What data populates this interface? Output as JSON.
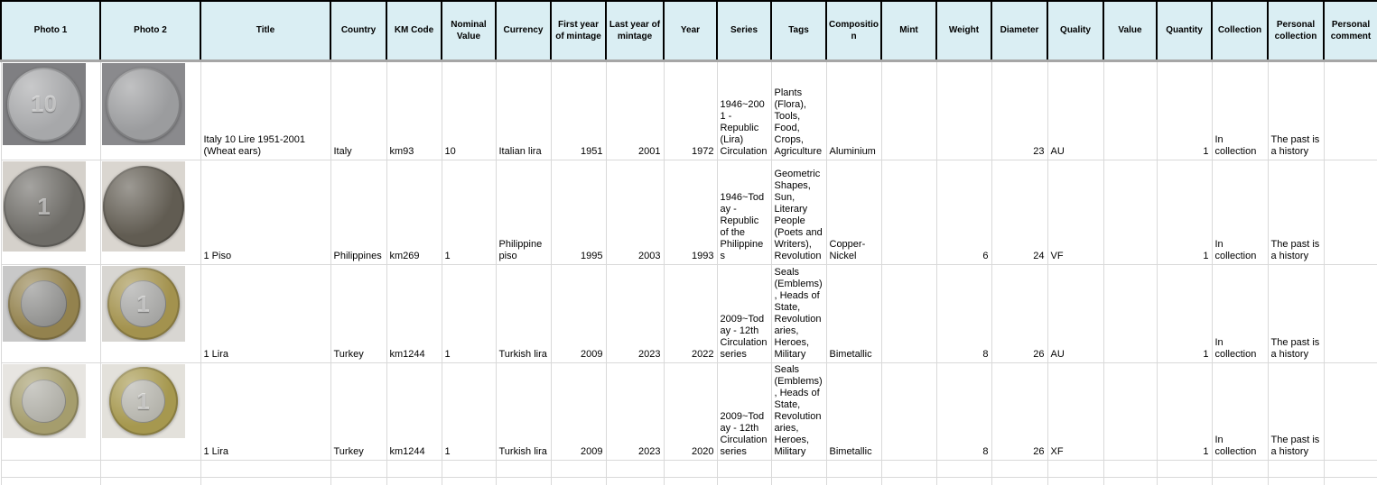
{
  "table": {
    "columns": [
      {
        "id": "photo1",
        "label": "Photo 1"
      },
      {
        "id": "photo2",
        "label": "Photo 2"
      },
      {
        "id": "title",
        "label": "Title"
      },
      {
        "id": "country",
        "label": "Country"
      },
      {
        "id": "km_code",
        "label": "KM Code"
      },
      {
        "id": "nominal_value",
        "label": "Nominal Value"
      },
      {
        "id": "currency",
        "label": "Currency"
      },
      {
        "id": "first_year",
        "label": "First year of mintage"
      },
      {
        "id": "last_year",
        "label": "Last year of mintage"
      },
      {
        "id": "year",
        "label": "Year"
      },
      {
        "id": "series",
        "label": "Series"
      },
      {
        "id": "tags",
        "label": "Tags"
      },
      {
        "id": "composition",
        "label": "Composition"
      },
      {
        "id": "mint",
        "label": "Mint"
      },
      {
        "id": "weight",
        "label": "Weight"
      },
      {
        "id": "diameter",
        "label": "Diameter"
      },
      {
        "id": "quality",
        "label": "Quality"
      },
      {
        "id": "value",
        "label": "Value"
      },
      {
        "id": "quantity",
        "label": "Quantity"
      },
      {
        "id": "collection",
        "label": "Collection"
      },
      {
        "id": "personal_collection",
        "label": "Personal collection"
      },
      {
        "id": "personal_comment",
        "label": "Personal comment"
      }
    ],
    "rows": [
      {
        "photo1": {
          "kind": "coin",
          "bg": "#7f7f82",
          "outer": "#a7a8aa",
          "inner": "",
          "label": "10"
        },
        "photo2": {
          "kind": "coin",
          "bg": "#8a8a8d",
          "outer": "#9b9c9e",
          "inner": "",
          "label": ""
        },
        "title": "Italy 10 Lire 1951-2001 (Wheat ears)",
        "country": "Italy",
        "km_code": "km93",
        "nominal_value": "10",
        "currency": "Italian lira",
        "first_year": "1951",
        "last_year": "2001",
        "year": "1972",
        "series": "1946~2001 - Republic (Lira) Circulation",
        "tags": "Plants (Flora), Tools, Food, Crops, Agriculture",
        "composition": "Aluminium",
        "mint": "",
        "weight": "",
        "diameter": "23",
        "quality": "AU",
        "value": "",
        "quantity": "1",
        "collection": "In collection",
        "personal_collection": "The past is a history",
        "personal_comment": ""
      },
      {
        "photo1": {
          "kind": "coin",
          "bg": "#d5d1cb",
          "outer": "#6e6c67",
          "inner": "",
          "label": "1"
        },
        "photo2": {
          "kind": "coin",
          "bg": "#dad6d0",
          "outer": "#615c52",
          "inner": "",
          "label": ""
        },
        "title": "1 Piso",
        "country": "Philippines",
        "km_code": "km269",
        "nominal_value": "1",
        "currency": "Philippine piso",
        "first_year": "1995",
        "last_year": "2003",
        "year": "1993",
        "series": "1946~Today - Republic of the Philippines",
        "tags": "Geometric Shapes, Sun, Literary People (Poets and Writers), Revolution",
        "composition": "Copper-Nickel",
        "mint": "",
        "weight": "6",
        "diameter": "24",
        "quality": "VF",
        "value": "",
        "quantity": "1",
        "collection": "In collection",
        "personal_collection": "The past is a history",
        "personal_comment": ""
      },
      {
        "photo1": {
          "kind": "coin",
          "bg": "#c8c8c8",
          "outer": "#93824e",
          "inner": "#8e8e8c",
          "label": ""
        },
        "photo2": {
          "kind": "coin",
          "bg": "#d8d6d2",
          "outer": "#a3924e",
          "inner": "#a4a4a2",
          "label": "1"
        },
        "title": "1 Lira",
        "country": "Turkey",
        "km_code": "km1244",
        "nominal_value": "1",
        "currency": "Turkish lira",
        "first_year": "2009",
        "last_year": "2023",
        "year": "2022",
        "series": "2009~Today - 12th Circulation series",
        "tags": "Seals (Emblems), Heads of State, Revolutionaries, Heroes, Military",
        "composition": "Bimetallic",
        "mint": "",
        "weight": "8",
        "diameter": "26",
        "quality": "AU",
        "value": "",
        "quantity": "1",
        "collection": "In collection",
        "personal_collection": "The past is a history",
        "personal_comment": ""
      },
      {
        "photo1": {
          "kind": "coin",
          "bg": "#e7e5e1",
          "outer": "#a59d6d",
          "inner": "#aeada5",
          "label": ""
        },
        "photo2": {
          "kind": "coin",
          "bg": "#e3e1db",
          "outer": "#a6984f",
          "inner": "#b3b2aa",
          "label": "1"
        },
        "title": "1 Lira",
        "country": "Turkey",
        "km_code": "km1244",
        "nominal_value": "1",
        "currency": "Turkish lira",
        "first_year": "2009",
        "last_year": "2023",
        "year": "2020",
        "series": "2009~Today - 12th Circulation series",
        "tags": "Seals (Emblems), Heads of State, Revolutionaries, Heroes, Military",
        "composition": "Bimetallic",
        "mint": "",
        "weight": "8",
        "diameter": "26",
        "quality": "XF",
        "value": "",
        "quantity": "1",
        "collection": "In collection",
        "personal_collection": "The past is a history",
        "personal_comment": ""
      }
    ]
  },
  "colors": {
    "header_bg": "#daeef3",
    "header_border": "#000000",
    "header_underline": "#a6a6a6",
    "gridline": "#d9d9d9",
    "text": "#000000"
  }
}
